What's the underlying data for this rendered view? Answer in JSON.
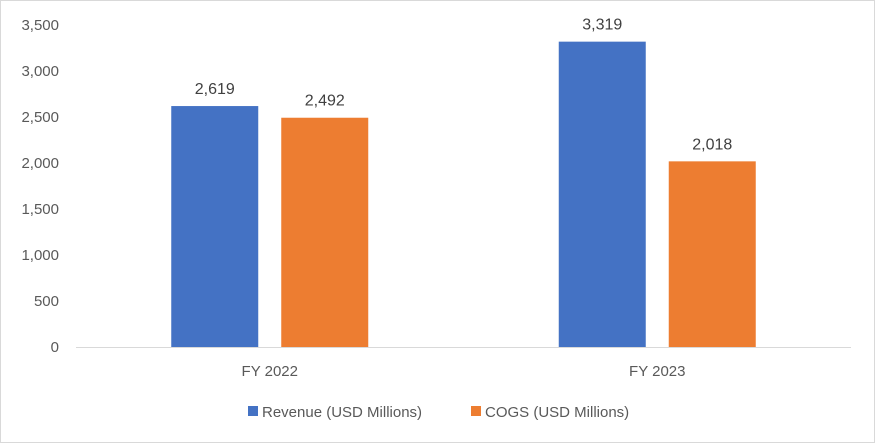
{
  "chart_data": {
    "type": "bar",
    "categories": [
      "FY 2022",
      "FY 2023"
    ],
    "series": [
      {
        "name": "Revenue (USD Millions)",
        "values": [
          2619,
          3319
        ],
        "labels": [
          "2,619",
          "3,319"
        ],
        "color": "#4472C4"
      },
      {
        "name": "COGS (USD Millions)",
        "values": [
          2492,
          2018
        ],
        "labels": [
          "2,492",
          "2,018"
        ],
        "color": "#ED7D31"
      }
    ],
    "ylim": [
      0,
      3500
    ],
    "yticks": [
      0,
      500,
      1000,
      1500,
      2000,
      2500,
      3000,
      3500
    ],
    "ytick_labels": [
      "0",
      "500",
      "1,000",
      "1,500",
      "2,000",
      "2,500",
      "3,000",
      "3,500"
    ],
    "grid": false,
    "legend_position": "bottom"
  }
}
